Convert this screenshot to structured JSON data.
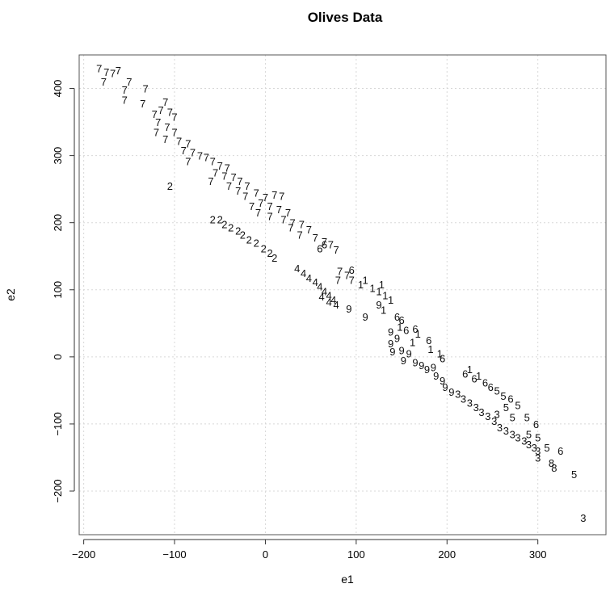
{
  "chart_data": {
    "type": "scatter",
    "title": "Olives Data",
    "xlabel": "e1",
    "ylabel": "e2",
    "xlim": [
      -205,
      375
    ],
    "ylim": [
      -265,
      450
    ],
    "xticks": [
      -200,
      -100,
      0,
      100,
      200,
      300
    ],
    "yticks": [
      -200,
      -100,
      0,
      100,
      200,
      300,
      400
    ],
    "tick_labels_x": [
      "−200",
      "−100",
      "0",
      "100",
      "200",
      "300"
    ],
    "tick_labels_y": [
      "−200",
      "−100",
      "0",
      "100",
      "200",
      "300",
      "400"
    ],
    "grid": true,
    "marker": "region digit",
    "points": [
      {
        "x": -183,
        "y": 430,
        "label": "7"
      },
      {
        "x": -175,
        "y": 425,
        "label": "7"
      },
      {
        "x": -168,
        "y": 423,
        "label": "7"
      },
      {
        "x": -162,
        "y": 427,
        "label": "7"
      },
      {
        "x": -178,
        "y": 410,
        "label": "7"
      },
      {
        "x": -150,
        "y": 410,
        "label": "7"
      },
      {
        "x": -155,
        "y": 398,
        "label": "7"
      },
      {
        "x": -132,
        "y": 400,
        "label": "7"
      },
      {
        "x": -155,
        "y": 383,
        "label": "7"
      },
      {
        "x": -135,
        "y": 378,
        "label": "7"
      },
      {
        "x": -110,
        "y": 380,
        "label": "7"
      },
      {
        "x": -115,
        "y": 368,
        "label": "7"
      },
      {
        "x": -105,
        "y": 365,
        "label": "7"
      },
      {
        "x": -122,
        "y": 362,
        "label": "7"
      },
      {
        "x": -100,
        "y": 358,
        "label": "7"
      },
      {
        "x": -118,
        "y": 350,
        "label": "7"
      },
      {
        "x": -108,
        "y": 343,
        "label": "7"
      },
      {
        "x": -120,
        "y": 335,
        "label": "7"
      },
      {
        "x": -100,
        "y": 335,
        "label": "7"
      },
      {
        "x": -110,
        "y": 325,
        "label": "7"
      },
      {
        "x": -95,
        "y": 322,
        "label": "7"
      },
      {
        "x": -85,
        "y": 318,
        "label": "7"
      },
      {
        "x": -90,
        "y": 308,
        "label": "7"
      },
      {
        "x": -80,
        "y": 305,
        "label": "7"
      },
      {
        "x": -72,
        "y": 300,
        "label": "7"
      },
      {
        "x": -65,
        "y": 298,
        "label": "7"
      },
      {
        "x": -85,
        "y": 292,
        "label": "7"
      },
      {
        "x": -58,
        "y": 292,
        "label": "7"
      },
      {
        "x": -50,
        "y": 285,
        "label": "7"
      },
      {
        "x": -42,
        "y": 282,
        "label": "7"
      },
      {
        "x": -55,
        "y": 275,
        "label": "7"
      },
      {
        "x": -45,
        "y": 270,
        "label": "7"
      },
      {
        "x": -35,
        "y": 268,
        "label": "7"
      },
      {
        "x": -28,
        "y": 262,
        "label": "7"
      },
      {
        "x": -60,
        "y": 262,
        "label": "7"
      },
      {
        "x": -40,
        "y": 255,
        "label": "7"
      },
      {
        "x": -20,
        "y": 255,
        "label": "7"
      },
      {
        "x": -30,
        "y": 248,
        "label": "7"
      },
      {
        "x": -10,
        "y": 245,
        "label": "7"
      },
      {
        "x": -22,
        "y": 240,
        "label": "7"
      },
      {
        "x": 0,
        "y": 238,
        "label": "7"
      },
      {
        "x": 10,
        "y": 242,
        "label": "7"
      },
      {
        "x": 18,
        "y": 240,
        "label": "7"
      },
      {
        "x": -5,
        "y": 230,
        "label": "7"
      },
      {
        "x": -15,
        "y": 225,
        "label": "7"
      },
      {
        "x": 5,
        "y": 225,
        "label": "7"
      },
      {
        "x": 15,
        "y": 220,
        "label": "7"
      },
      {
        "x": 25,
        "y": 215,
        "label": "7"
      },
      {
        "x": -8,
        "y": 215,
        "label": "7"
      },
      {
        "x": 5,
        "y": 210,
        "label": "7"
      },
      {
        "x": 20,
        "y": 205,
        "label": "7"
      },
      {
        "x": 30,
        "y": 200,
        "label": "7"
      },
      {
        "x": 40,
        "y": 198,
        "label": "7"
      },
      {
        "x": 28,
        "y": 193,
        "label": "7"
      },
      {
        "x": 48,
        "y": 190,
        "label": "7"
      },
      {
        "x": 38,
        "y": 182,
        "label": "7"
      },
      {
        "x": 55,
        "y": 178,
        "label": "7"
      },
      {
        "x": 65,
        "y": 172,
        "label": "7"
      },
      {
        "x": 72,
        "y": 168,
        "label": "7"
      },
      {
        "x": 78,
        "y": 160,
        "label": "7"
      },
      {
        "x": 82,
        "y": 128,
        "label": "7"
      },
      {
        "x": 90,
        "y": 122,
        "label": "7"
      },
      {
        "x": 80,
        "y": 115,
        "label": "7"
      },
      {
        "x": 95,
        "y": 115,
        "label": "7"
      },
      {
        "x": -105,
        "y": 255,
        "label": "2"
      },
      {
        "x": -58,
        "y": 205,
        "label": "2"
      },
      {
        "x": -50,
        "y": 205,
        "label": "2"
      },
      {
        "x": -45,
        "y": 198,
        "label": "2"
      },
      {
        "x": -38,
        "y": 193,
        "label": "2"
      },
      {
        "x": -30,
        "y": 188,
        "label": "2"
      },
      {
        "x": -25,
        "y": 182,
        "label": "2"
      },
      {
        "x": -18,
        "y": 175,
        "label": "2"
      },
      {
        "x": -10,
        "y": 170,
        "label": "2"
      },
      {
        "x": -2,
        "y": 162,
        "label": "2"
      },
      {
        "x": 5,
        "y": 155,
        "label": "2"
      },
      {
        "x": 10,
        "y": 148,
        "label": "2"
      },
      {
        "x": 35,
        "y": 132,
        "label": "4"
      },
      {
        "x": 42,
        "y": 125,
        "label": "4"
      },
      {
        "x": 48,
        "y": 118,
        "label": "4"
      },
      {
        "x": 55,
        "y": 112,
        "label": "4"
      },
      {
        "x": 60,
        "y": 105,
        "label": "4"
      },
      {
        "x": 65,
        "y": 98,
        "label": "4"
      },
      {
        "x": 70,
        "y": 92,
        "label": "4"
      },
      {
        "x": 75,
        "y": 85,
        "label": "4"
      },
      {
        "x": 78,
        "y": 78,
        "label": "4"
      },
      {
        "x": 62,
        "y": 90,
        "label": "4"
      },
      {
        "x": 70,
        "y": 82,
        "label": "4"
      },
      {
        "x": 60,
        "y": 162,
        "label": "6"
      },
      {
        "x": 65,
        "y": 168,
        "label": "6"
      },
      {
        "x": 95,
        "y": 130,
        "label": "6"
      },
      {
        "x": 105,
        "y": 108,
        "label": "1"
      },
      {
        "x": 110,
        "y": 115,
        "label": "1"
      },
      {
        "x": 118,
        "y": 103,
        "label": "1"
      },
      {
        "x": 125,
        "y": 98,
        "label": "1"
      },
      {
        "x": 128,
        "y": 108,
        "label": "1"
      },
      {
        "x": 132,
        "y": 92,
        "label": "1"
      },
      {
        "x": 138,
        "y": 85,
        "label": "1"
      },
      {
        "x": 92,
        "y": 72,
        "label": "9"
      },
      {
        "x": 110,
        "y": 60,
        "label": "9"
      },
      {
        "x": 125,
        "y": 78,
        "label": "9"
      },
      {
        "x": 130,
        "y": 70,
        "label": "1"
      },
      {
        "x": 145,
        "y": 60,
        "label": "6"
      },
      {
        "x": 150,
        "y": 55,
        "label": "6"
      },
      {
        "x": 148,
        "y": 45,
        "label": "1"
      },
      {
        "x": 155,
        "y": 40,
        "label": "6"
      },
      {
        "x": 165,
        "y": 42,
        "label": "6"
      },
      {
        "x": 168,
        "y": 35,
        "label": "1"
      },
      {
        "x": 162,
        "y": 22,
        "label": "1"
      },
      {
        "x": 180,
        "y": 25,
        "label": "6"
      },
      {
        "x": 182,
        "y": 12,
        "label": "1"
      },
      {
        "x": 192,
        "y": 5,
        "label": "1"
      },
      {
        "x": 195,
        "y": -2,
        "label": "6"
      },
      {
        "x": 138,
        "y": 38,
        "label": "9"
      },
      {
        "x": 145,
        "y": 28,
        "label": "9"
      },
      {
        "x": 138,
        "y": 20,
        "label": "9"
      },
      {
        "x": 150,
        "y": 10,
        "label": "9"
      },
      {
        "x": 140,
        "y": 8,
        "label": "9"
      },
      {
        "x": 158,
        "y": 5,
        "label": "9"
      },
      {
        "x": 152,
        "y": -5,
        "label": "9"
      },
      {
        "x": 165,
        "y": -8,
        "label": "9"
      },
      {
        "x": 172,
        "y": -12,
        "label": "9"
      },
      {
        "x": 178,
        "y": -18,
        "label": "9"
      },
      {
        "x": 185,
        "y": -15,
        "label": "9"
      },
      {
        "x": 188,
        "y": -28,
        "label": "9"
      },
      {
        "x": 195,
        "y": -35,
        "label": "9"
      },
      {
        "x": 198,
        "y": -45,
        "label": "9"
      },
      {
        "x": 205,
        "y": -52,
        "label": "9"
      },
      {
        "x": 212,
        "y": -55,
        "label": "3"
      },
      {
        "x": 218,
        "y": -62,
        "label": "3"
      },
      {
        "x": 225,
        "y": -68,
        "label": "3"
      },
      {
        "x": 232,
        "y": -75,
        "label": "3"
      },
      {
        "x": 238,
        "y": -82,
        "label": "3"
      },
      {
        "x": 245,
        "y": -88,
        "label": "3"
      },
      {
        "x": 252,
        "y": -95,
        "label": "3"
      },
      {
        "x": 258,
        "y": -105,
        "label": "3"
      },
      {
        "x": 265,
        "y": -110,
        "label": "3"
      },
      {
        "x": 272,
        "y": -115,
        "label": "3"
      },
      {
        "x": 278,
        "y": -120,
        "label": "3"
      },
      {
        "x": 285,
        "y": -125,
        "label": "3"
      },
      {
        "x": 290,
        "y": -130,
        "label": "3"
      },
      {
        "x": 296,
        "y": -135,
        "label": "3"
      },
      {
        "x": 300,
        "y": -140,
        "label": "3"
      },
      {
        "x": 255,
        "y": -85,
        "label": "3"
      },
      {
        "x": 350,
        "y": -240,
        "label": "3"
      },
      {
        "x": 220,
        "y": -25,
        "label": "6"
      },
      {
        "x": 230,
        "y": -32,
        "label": "6"
      },
      {
        "x": 225,
        "y": -18,
        "label": "1"
      },
      {
        "x": 235,
        "y": -28,
        "label": "1"
      },
      {
        "x": 242,
        "y": -38,
        "label": "6"
      },
      {
        "x": 248,
        "y": -45,
        "label": "6"
      },
      {
        "x": 255,
        "y": -50,
        "label": "5"
      },
      {
        "x": 262,
        "y": -58,
        "label": "5"
      },
      {
        "x": 270,
        "y": -62,
        "label": "6"
      },
      {
        "x": 278,
        "y": -72,
        "label": "5"
      },
      {
        "x": 265,
        "y": -75,
        "label": "5"
      },
      {
        "x": 272,
        "y": -90,
        "label": "5"
      },
      {
        "x": 288,
        "y": -90,
        "label": "5"
      },
      {
        "x": 298,
        "y": -100,
        "label": "6"
      },
      {
        "x": 290,
        "y": -115,
        "label": "5"
      },
      {
        "x": 300,
        "y": -120,
        "label": "5"
      },
      {
        "x": 310,
        "y": -135,
        "label": "5"
      },
      {
        "x": 300,
        "y": -150,
        "label": "3"
      },
      {
        "x": 315,
        "y": -158,
        "label": "8"
      },
      {
        "x": 318,
        "y": -165,
        "label": "8"
      },
      {
        "x": 325,
        "y": -140,
        "label": "6"
      },
      {
        "x": 340,
        "y": -175,
        "label": "5"
      }
    ]
  }
}
